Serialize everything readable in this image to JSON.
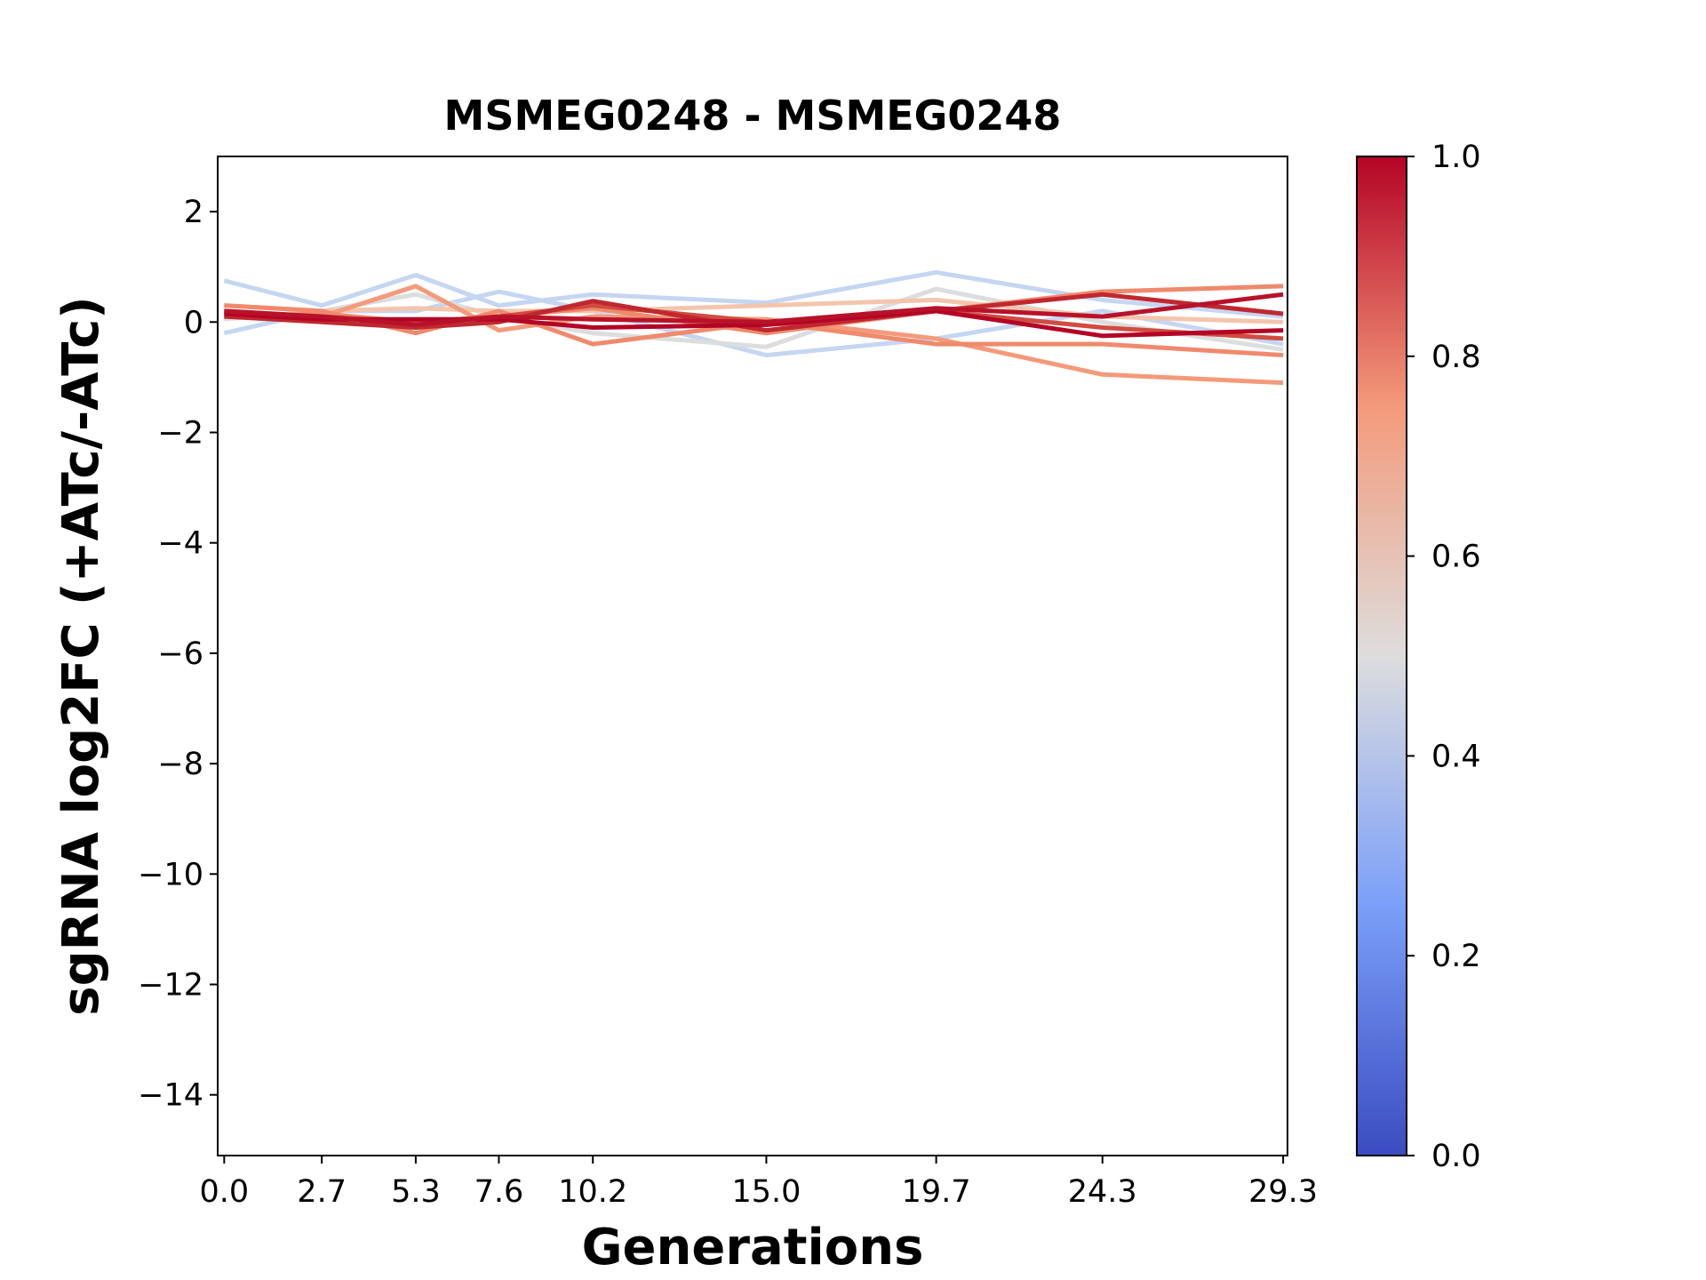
{
  "chart_data": {
    "type": "line",
    "title": "MSMEG0248 - MSMEG0248",
    "xlabel": "Generations",
    "ylabel": "sgRNA log2FC (+ATc/-ATc)",
    "x": [
      0,
      2.7,
      5.3,
      7.6,
      10.2,
      15.0,
      19.7,
      24.3,
      29.3
    ],
    "xlim": [
      -0.18,
      29.42
    ],
    "xticks": [
      {
        "value": 0,
        "label": "0.0"
      },
      2.7,
      5.3,
      7.6,
      10.2,
      {
        "value": 15,
        "label": "15.0"
      },
      19.7,
      24.3,
      29.3
    ],
    "ylim": [
      -15.1,
      3
    ],
    "yticks": [
      2,
      0,
      {
        "value": -2,
        "label": "−2"
      },
      {
        "value": -4,
        "label": "−4"
      },
      {
        "value": -6,
        "label": "−6"
      },
      {
        "value": -8,
        "label": "−8"
      },
      {
        "value": -10,
        "label": "−10"
      },
      {
        "value": -12,
        "label": "−12"
      },
      {
        "value": -14,
        "label": "−14"
      }
    ],
    "series": [
      {
        "color": "#c5d6f2",
        "values": [
          0.75,
          0.3,
          0.85,
          0.3,
          0.5,
          0.35,
          0.9,
          0.4,
          0.1
        ]
      },
      {
        "color": "#c5d6f2",
        "values": [
          -0.2,
          0.2,
          0.2,
          0.55,
          0.2,
          -0.6,
          -0.3,
          0.2,
          -0.4
        ]
      },
      {
        "color": "#dcdddd",
        "values": [
          0.05,
          0.2,
          0.5,
          0.1,
          -0.2,
          -0.45,
          0.6,
          0.0,
          -0.5
        ]
      },
      {
        "color": "#f4c5ad",
        "values": [
          0.3,
          0.2,
          0.25,
          0.2,
          0.2,
          0.3,
          0.4,
          0.1,
          0.0
        ]
      },
      {
        "color": "#f49a7b",
        "values": [
          0.2,
          0.1,
          0.65,
          -0.15,
          0.1,
          0.05,
          -0.3,
          -0.95,
          -1.1
        ]
      },
      {
        "color": "#f08a6c",
        "values": [
          0.3,
          0.2,
          -0.2,
          0.2,
          -0.4,
          0.0,
          -0.4,
          -0.4,
          -0.6
        ]
      },
      {
        "color": "#ef8a6c",
        "values": [
          0.1,
          0.15,
          0.0,
          0.1,
          0.25,
          -0.2,
          0.2,
          0.55,
          0.65
        ]
      },
      {
        "color": "#d24b40",
        "values": [
          0.2,
          0.1,
          0.0,
          0.1,
          0.3,
          0.0,
          0.2,
          -0.1,
          -0.3
        ]
      },
      {
        "color": "#c0282f",
        "values": [
          0.1,
          0.0,
          -0.1,
          0.0,
          0.38,
          -0.15,
          0.2,
          0.5,
          0.15
        ]
      },
      {
        "color": "#b40426",
        "values": [
          0.15,
          0.05,
          0.05,
          0.05,
          -0.1,
          -0.05,
          0.2,
          -0.25,
          -0.15
        ]
      },
      {
        "color": "#b8122a",
        "values": [
          0.2,
          0.1,
          -0.05,
          0.1,
          0.05,
          0.0,
          0.25,
          0.1,
          0.5
        ]
      }
    ],
    "colorbar": {
      "lim": [
        0,
        1
      ],
      "colors": [
        "#3b4cc0",
        "#7b9ff9",
        "#dddddd",
        "#f49a7b",
        "#b40426"
      ],
      "ticks": [
        {
          "value": 0,
          "label": "0.0"
        },
        0.2,
        0.4,
        0.6,
        0.8,
        {
          "value": 1,
          "label": "1.0"
        }
      ]
    }
  }
}
